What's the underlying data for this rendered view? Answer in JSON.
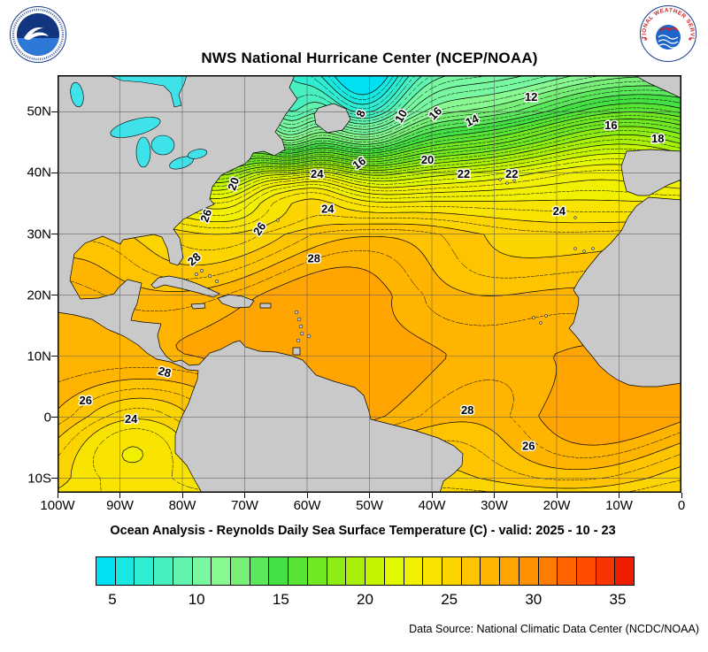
{
  "header": {
    "title": "NWS National Hurricane Center (NCEP/NOAA)",
    "noaa_logo_label": "NOAA",
    "nws_ring_text": "NATIONAL WEATHER SERVICE"
  },
  "caption": "Ocean Analysis - Reynolds Daily Sea Surface Temperature (C) - valid: 2025 - 10 - 23",
  "footer": {
    "data_source": "Data Source: National Climatic Data Center (NCDC/NOAA)"
  },
  "chart_data": {
    "type": "heatmap",
    "subtype": "filled-contour-sst-map",
    "title": "NWS National Hurricane Center (NCEP/NOAA)",
    "units": "C",
    "valid_date": "2025 - 10 - 23",
    "lon_range": [
      -100,
      0
    ],
    "lat_range": [
      -12.36,
      56
    ],
    "grid_interval_deg": 10,
    "contour_interval_c": 1,
    "lon_ticks": [
      "100W",
      "90W",
      "80W",
      "70W",
      "60W",
      "50W",
      "40W",
      "30W",
      "20W",
      "10W",
      "0"
    ],
    "lat_ticks": [
      "50N",
      "40N",
      "30N",
      "20N",
      "10N",
      "0",
      "10S"
    ],
    "land_color": "#c9c9c9",
    "lake_color": "#3fe2e8",
    "ocean_contour_labels": [
      {
        "label": "12",
        "lon": -24.1,
        "lat": 51.8,
        "rot": 0
      },
      {
        "label": "8",
        "lon": -50.8,
        "lat": 49.5,
        "rot": -70
      },
      {
        "label": "10",
        "lon": -44.4,
        "lat": 49.0,
        "rot": -60
      },
      {
        "label": "16",
        "lon": -39.0,
        "lat": 49.3,
        "rot": -45
      },
      {
        "label": "14",
        "lon": -33.3,
        "lat": 48.0,
        "rot": -25
      },
      {
        "label": "16",
        "lon": -11.3,
        "lat": 47.2,
        "rot": 0
      },
      {
        "label": "18",
        "lon": -3.8,
        "lat": 45.0,
        "rot": 0
      },
      {
        "label": "16",
        "lon": -51.3,
        "lat": 41.1,
        "rot": -35
      },
      {
        "label": "20",
        "lon": -40.7,
        "lat": 41.5,
        "rot": 0
      },
      {
        "label": "22",
        "lon": -34.9,
        "lat": 39.2,
        "rot": 0
      },
      {
        "label": "22",
        "lon": -27.2,
        "lat": 39.2,
        "rot": 0
      },
      {
        "label": "24",
        "lon": -58.4,
        "lat": 39.2,
        "rot": 0
      },
      {
        "label": "20",
        "lon": -71.2,
        "lat": 38.0,
        "rot": -70
      },
      {
        "label": "26",
        "lon": -75.6,
        "lat": 32.8,
        "rot": -70
      },
      {
        "label": "24",
        "lon": -56.7,
        "lat": 33.5,
        "rot": 0
      },
      {
        "label": "26",
        "lon": -67.1,
        "lat": 30.5,
        "rot": -55
      },
      {
        "label": "24",
        "lon": -19.6,
        "lat": 33.1,
        "rot": 0
      },
      {
        "label": "28",
        "lon": -77.7,
        "lat": 25.4,
        "rot": -40
      },
      {
        "label": "28",
        "lon": -58.9,
        "lat": 25.4,
        "rot": 0
      },
      {
        "label": "28",
        "lon": -83.0,
        "lat": 6.8,
        "rot": 15
      },
      {
        "label": "26",
        "lon": -95.5,
        "lat": 2.1,
        "rot": 0
      },
      {
        "label": "24",
        "lon": -88.2,
        "lat": -0.9,
        "rot": 0
      },
      {
        "label": "28",
        "lon": -34.3,
        "lat": 0.5,
        "rot": 0
      },
      {
        "label": "26",
        "lon": -24.5,
        "lat": -5.3,
        "rot": 0
      }
    ],
    "colorbar": {
      "min": 4,
      "max": 36,
      "ticks": [
        5,
        10,
        15,
        20,
        25,
        30,
        35
      ],
      "colors": [
        "#00e0f0",
        "#18e8e0",
        "#30ecd0",
        "#48f0c0",
        "#60f4b0",
        "#78f8a0",
        "#88f890",
        "#78f078",
        "#5ce85c",
        "#44e044",
        "#58e434",
        "#70e824",
        "#8cec14",
        "#a8f008",
        "#c4f400",
        "#e0f800",
        "#f0f000",
        "#f8e400",
        "#fcd400",
        "#ffc400",
        "#ffb400",
        "#ffa400",
        "#ff9000",
        "#ff7c00",
        "#ff6400",
        "#ff4c00",
        "#f83400",
        "#f01c00"
      ]
    }
  }
}
